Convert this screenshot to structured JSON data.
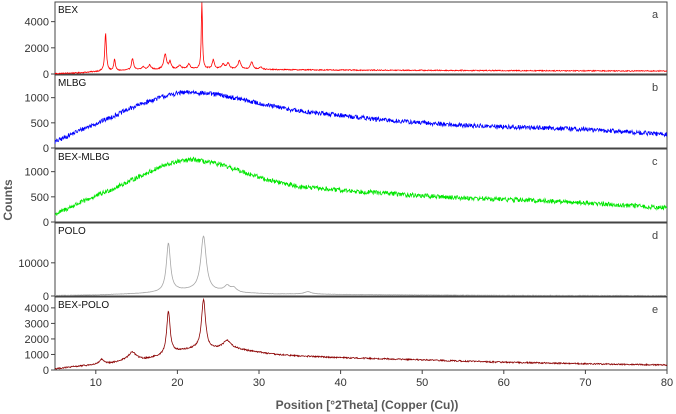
{
  "chart_data": {
    "type": "line",
    "xlabel": "Position [°2Theta] (Copper (Cu))",
    "ylabel": "Counts",
    "xlim": [
      5,
      80
    ],
    "xticks": [
      10,
      20,
      30,
      40,
      50,
      60,
      70,
      80
    ],
    "panels": [
      {
        "name": "BEX",
        "letter": "a",
        "color": "#ff0000",
        "ylim": [
          0,
          5500
        ],
        "yticks": [
          0,
          2000,
          4000
        ],
        "baseline": [
          [
            5,
            30
          ],
          [
            8,
            90
          ],
          [
            10,
            180
          ],
          [
            15,
            300
          ],
          [
            20,
            370
          ],
          [
            23,
            400
          ],
          [
            30,
            340
          ],
          [
            40,
            300
          ],
          [
            60,
            260
          ],
          [
            80,
            230
          ]
        ],
        "peaks": [
          [
            11.2,
            2900,
            0.12
          ],
          [
            12.3,
            850,
            0.12
          ],
          [
            14.5,
            900,
            0.15
          ],
          [
            15.8,
            220,
            0.2
          ],
          [
            16.6,
            350,
            0.2
          ],
          [
            18.5,
            1150,
            0.2
          ],
          [
            19.1,
            550,
            0.15
          ],
          [
            20.3,
            300,
            0.2
          ],
          [
            21.4,
            350,
            0.2
          ],
          [
            23.0,
            5500,
            0.08
          ],
          [
            24.4,
            700,
            0.15
          ],
          [
            25.6,
            350,
            0.2
          ],
          [
            26.2,
            450,
            0.2
          ],
          [
            27.6,
            650,
            0.2
          ],
          [
            29.1,
            550,
            0.2
          ],
          [
            30.2,
            200,
            0.2
          ]
        ],
        "noise": 40
      },
      {
        "name": "MLBG",
        "letter": "b",
        "color": "#0000ff",
        "ylim": [
          0,
          1450
        ],
        "yticks": [
          0,
          500,
          1000
        ],
        "baseline": [
          [
            5,
            120
          ],
          [
            8,
            350
          ],
          [
            12,
            620
          ],
          [
            15,
            840
          ],
          [
            18,
            1010
          ],
          [
            20,
            1090
          ],
          [
            22,
            1110
          ],
          [
            25,
            1060
          ],
          [
            28,
            960
          ],
          [
            31,
            850
          ],
          [
            35,
            730
          ],
          [
            40,
            650
          ],
          [
            45,
            560
          ],
          [
            50,
            500
          ],
          [
            55,
            450
          ],
          [
            60,
            420
          ],
          [
            65,
            400
          ],
          [
            70,
            370
          ],
          [
            75,
            320
          ],
          [
            80,
            270
          ]
        ],
        "peaks": [],
        "noise": 45
      },
      {
        "name": "BEX-MLBG",
        "letter": "c",
        "color": "#00e600",
        "ylim": [
          0,
          1450
        ],
        "yticks": [
          0,
          500,
          1000
        ],
        "baseline": [
          [
            5,
            150
          ],
          [
            8,
            380
          ],
          [
            12,
            650
          ],
          [
            15,
            880
          ],
          [
            18,
            1100
          ],
          [
            20,
            1200
          ],
          [
            22,
            1240
          ],
          [
            25,
            1150
          ],
          [
            28,
            1000
          ],
          [
            31,
            840
          ],
          [
            35,
            700
          ],
          [
            40,
            630
          ],
          [
            45,
            580
          ],
          [
            50,
            520
          ],
          [
            55,
            480
          ],
          [
            60,
            450
          ],
          [
            65,
            420
          ],
          [
            70,
            380
          ],
          [
            75,
            330
          ],
          [
            80,
            280
          ]
        ],
        "peaks": [],
        "noise": 45
      },
      {
        "name": "POLO",
        "letter": "d",
        "color": "#a6a6a6",
        "ylim": [
          0,
          22000
        ],
        "yticks": [
          0,
          10000
        ],
        "baseline": [
          [
            5,
            150
          ],
          [
            10,
            300
          ],
          [
            15,
            700
          ],
          [
            18,
            1100
          ],
          [
            20,
            1600
          ],
          [
            22,
            1700
          ],
          [
            24,
            1300
          ],
          [
            26,
            1400
          ],
          [
            28,
            900
          ],
          [
            32,
            600
          ],
          [
            36,
            600
          ],
          [
            40,
            450
          ],
          [
            50,
            300
          ],
          [
            60,
            200
          ],
          [
            80,
            150
          ]
        ],
        "peaks": [
          [
            18.9,
            14500,
            0.3
          ],
          [
            23.2,
            16500,
            0.4
          ],
          [
            26.1,
            1500,
            0.4
          ],
          [
            26.9,
            1200,
            0.4
          ],
          [
            36.0,
            700,
            0.5
          ]
        ],
        "noise": 50
      },
      {
        "name": "BEX-POLO",
        "letter": "e",
        "color": "#8b0000",
        "ylim": [
          0,
          4700
        ],
        "yticks": [
          0,
          1000,
          2000,
          3000,
          4000
        ],
        "baseline": [
          [
            5,
            80
          ],
          [
            8,
            250
          ],
          [
            10,
            350
          ],
          [
            12,
            450
          ],
          [
            14,
            700
          ],
          [
            16,
            700
          ],
          [
            18,
            900
          ],
          [
            20,
            1200
          ],
          [
            22,
            1350
          ],
          [
            24,
            1300
          ],
          [
            26,
            1500
          ],
          [
            28,
            1300
          ],
          [
            30,
            1150
          ],
          [
            32,
            1000
          ],
          [
            35,
            900
          ],
          [
            40,
            800
          ],
          [
            50,
            650
          ],
          [
            60,
            500
          ],
          [
            70,
            400
          ],
          [
            80,
            320
          ]
        ],
        "peaks": [
          [
            10.7,
            300,
            0.3
          ],
          [
            14.5,
            450,
            0.5
          ],
          [
            18.9,
            2750,
            0.25
          ],
          [
            23.2,
            3200,
            0.3
          ],
          [
            26.1,
            400,
            0.5
          ]
        ],
        "noise": 45
      }
    ]
  }
}
